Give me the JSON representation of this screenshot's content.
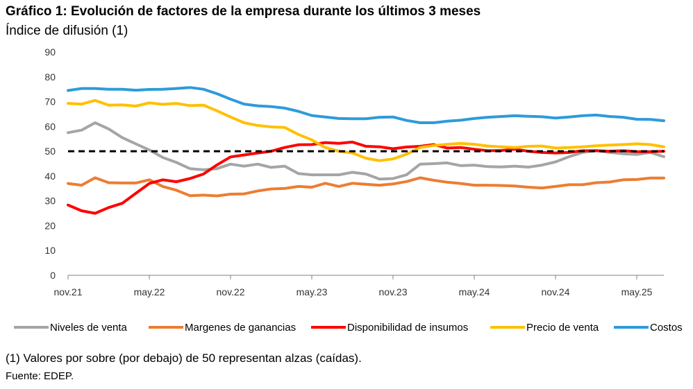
{
  "title": "Gráfico 1: Evolución de factores de la empresa durante los últimos 3 meses",
  "subtitle": "Índice de difusión (1)",
  "note": "(1) Valores por sobre (por debajo) de 50 representan alzas (caídas).",
  "source": "Fuente: EDEP.",
  "chart_data": {
    "type": "line",
    "ylim": [
      0,
      90
    ],
    "yticks": [
      0,
      10,
      20,
      30,
      40,
      50,
      60,
      70,
      80,
      90
    ],
    "xtick_labels": [
      "nov.21",
      "may.22",
      "nov.22",
      "may.23",
      "nov.23",
      "may.24",
      "nov.24",
      "may.25"
    ],
    "xtick_indices": [
      0,
      6,
      12,
      18,
      24,
      30,
      36,
      42
    ],
    "x_count": 45,
    "reference_line": {
      "value": 50,
      "style": "dashed",
      "color": "#000000"
    },
    "grid": false,
    "legend_position": "bottom",
    "series": [
      {
        "name": "Niveles de venta",
        "color": "#A5A5A5",
        "values": [
          57.5,
          58.5,
          61.5,
          59,
          55.5,
          53,
          50.5,
          47.5,
          45.5,
          43,
          42.5,
          43,
          44.8,
          44,
          44.8,
          43.5,
          44,
          41,
          40.5,
          40.5,
          40.5,
          41.5,
          40.8,
          38.8,
          39,
          40.5,
          44.8,
          45,
          45.3,
          44.2,
          44.4,
          43.8,
          43.7,
          44,
          43.6,
          44.4,
          45.7,
          47.8,
          49.5,
          50.3,
          49.5,
          49,
          48.7,
          49.5,
          47.8
        ]
      },
      {
        "name": "Margenes de ganancias",
        "color": "#ED7D31",
        "values": [
          37,
          36.3,
          39.3,
          37.3,
          37.2,
          37.2,
          38.5,
          35.8,
          34.3,
          32.1,
          32.3,
          32,
          32.7,
          32.8,
          34,
          34.8,
          35,
          35.8,
          35.5,
          37.1,
          35.8,
          37.1,
          36.7,
          36.3,
          36.8,
          37.8,
          39.3,
          38.3,
          37.5,
          37,
          36.3,
          36.3,
          36.2,
          36,
          35.5,
          35.2,
          35.8,
          36.5,
          36.5,
          37.3,
          37.6,
          38.5,
          38.6,
          39.2,
          39.2
        ]
      },
      {
        "name": "Disponibilidad de insumos",
        "color": "#FF0000",
        "values": [
          28.3,
          26,
          25,
          27.3,
          29,
          33,
          37,
          38.5,
          37.7,
          39,
          40.8,
          44.5,
          47.7,
          48.5,
          49.3,
          50,
          51.5,
          52.6,
          52.7,
          53.5,
          53.2,
          53.7,
          52,
          51.8,
          51,
          51.7,
          52,
          52.7,
          51.3,
          51.5,
          50.8,
          50.2,
          50.3,
          50.8,
          50,
          49.5,
          49.3,
          49.5,
          50.2,
          50.2,
          50,
          50.2,
          49.8,
          49.8,
          50
        ]
      },
      {
        "name": "Precio de venta",
        "color": "#FFC000",
        "values": [
          69.3,
          69,
          70.5,
          68.6,
          68.7,
          68.2,
          69.5,
          68.9,
          69.3,
          68.4,
          68.6,
          66.3,
          63.8,
          61.5,
          60.4,
          59.8,
          59.6,
          56.8,
          54.6,
          51.5,
          50,
          49.3,
          47.2,
          46.2,
          46.9,
          48.8,
          51.5,
          52.3,
          52.8,
          53.2,
          52.8,
          52.1,
          51.8,
          51.5,
          52,
          52.1,
          51.3,
          51.5,
          51.8,
          52.2,
          52.5,
          52.7,
          53,
          52.7,
          51.8
        ]
      },
      {
        "name": "Costos",
        "color": "#2E9BDA",
        "values": [
          74.5,
          75.3,
          75.3,
          75,
          75,
          74.6,
          74.9,
          75,
          75.3,
          75.7,
          75,
          73.2,
          71,
          69,
          68.3,
          68,
          67.4,
          66.1,
          64.4,
          63.8,
          63.2,
          63.1,
          63.1,
          63.7,
          63.8,
          62.4,
          61.5,
          61.5,
          62.1,
          62.5,
          63.2,
          63.7,
          64,
          64.3,
          64.1,
          63.9,
          63.4,
          63.8,
          64.3,
          64.6,
          64,
          63.7,
          62.9,
          62.8,
          62.3
        ]
      }
    ]
  }
}
